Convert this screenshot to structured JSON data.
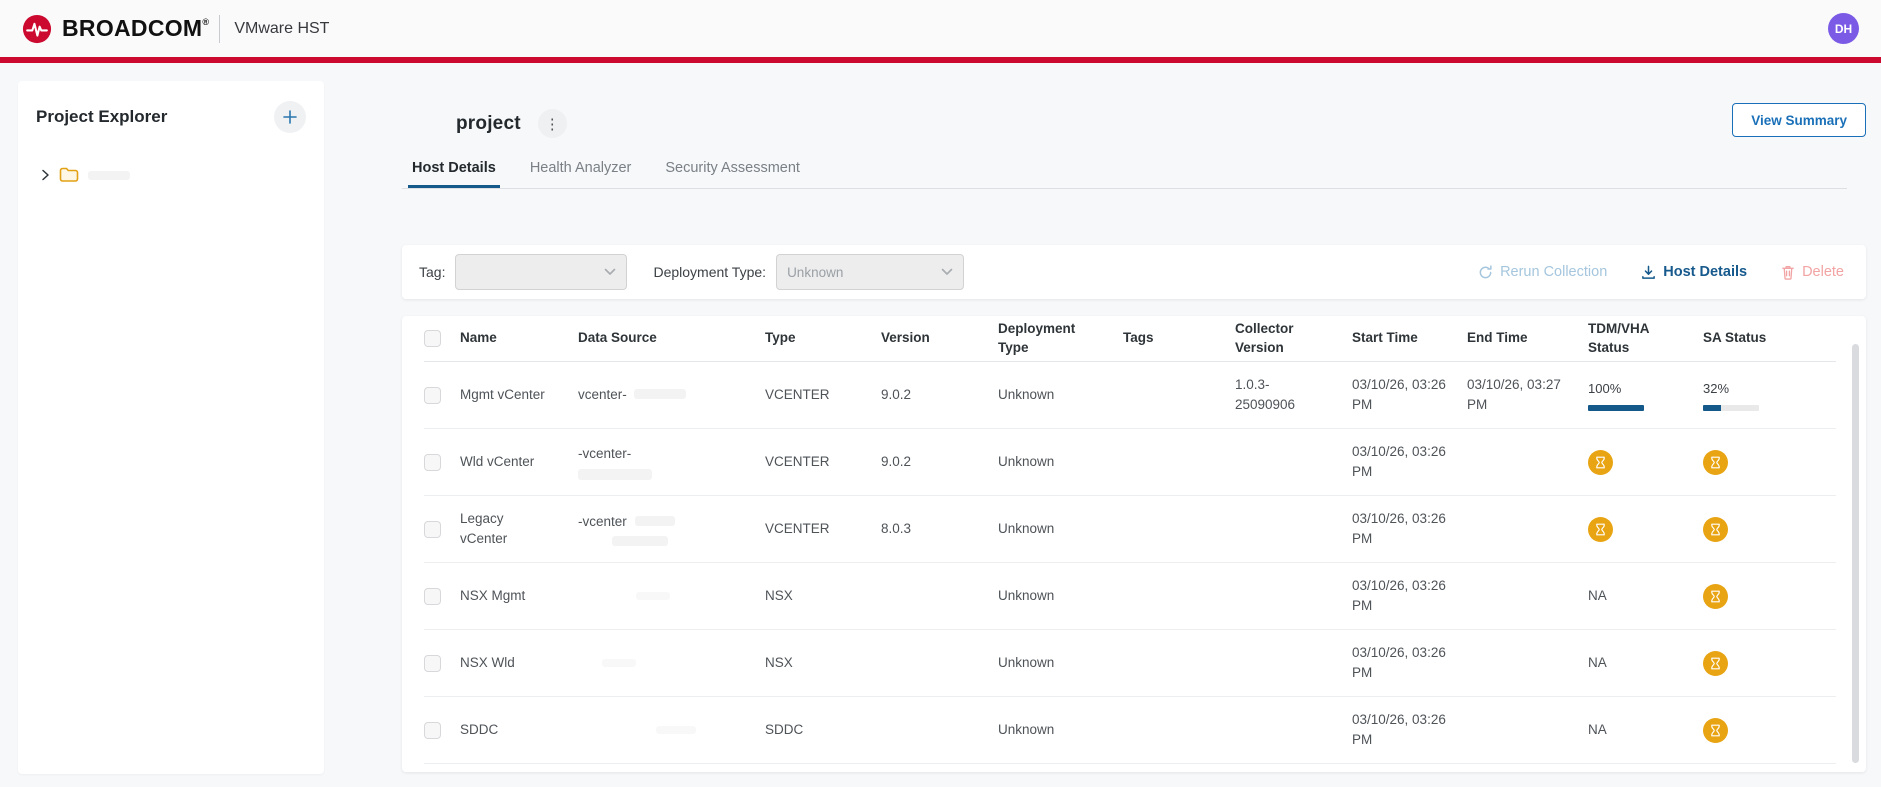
{
  "header": {
    "brand": "BROADCOM",
    "brand_reg": "®",
    "app_title": "VMware HST",
    "avatar_initials": "DH"
  },
  "sidebar": {
    "title": "Project Explorer",
    "add_button": "+"
  },
  "page": {
    "project_title": "project",
    "kebab": "⋮",
    "view_summary_label": "View Summary",
    "tabs": [
      {
        "label": "Host Details",
        "active": true
      },
      {
        "label": "Health Analyzer",
        "active": false
      },
      {
        "label": "Security Assessment",
        "active": false
      }
    ]
  },
  "filters": {
    "tag_label": "Tag:",
    "tag_value": "",
    "deployment_label": "Deployment Type:",
    "deployment_value": "Unknown",
    "actions": {
      "rerun": "Rerun Collection",
      "host_details": "Host Details",
      "delete": "Delete"
    }
  },
  "table": {
    "columns": {
      "name": "Name",
      "data_source": "Data Source",
      "type": "Type",
      "version": "Version",
      "deployment_type": "Deployment Type",
      "tags": "Tags",
      "collector_version": "Collector Version",
      "start_time": "Start Time",
      "end_time": "End Time",
      "tdm_vha_status": "TDM/VHA Status",
      "sa_status": "SA Status"
    },
    "rows": [
      {
        "name": "Mgmt vCenter",
        "data_source": "vcenter-",
        "type": "VCENTER",
        "version": "9.0.2",
        "deployment_type": "Unknown",
        "tags": "",
        "collector_version": "1.0.3-25090906",
        "start_time": "03/10/26, 03:26 PM",
        "end_time": "03/10/26, 03:27 PM",
        "tdm_vha": {
          "kind": "progress",
          "label": "100%",
          "percent": 100
        },
        "sa": {
          "kind": "progress",
          "label": "32%",
          "percent": 32
        }
      },
      {
        "name": "Wld vCenter",
        "data_source": "-vcenter-",
        "type": "VCENTER",
        "version": "9.0.2",
        "deployment_type": "Unknown",
        "tags": "",
        "collector_version": "",
        "start_time": "03/10/26, 03:26 PM",
        "end_time": "",
        "tdm_vha": {
          "kind": "pending"
        },
        "sa": {
          "kind": "pending"
        }
      },
      {
        "name": "Legacy vCenter",
        "data_source": "-vcenter",
        "type": "VCENTER",
        "version": "8.0.3",
        "deployment_type": "Unknown",
        "tags": "",
        "collector_version": "",
        "start_time": "03/10/26, 03:26 PM",
        "end_time": "",
        "tdm_vha": {
          "kind": "pending"
        },
        "sa": {
          "kind": "pending"
        }
      },
      {
        "name": "NSX Mgmt",
        "data_source": "",
        "type": "NSX",
        "version": "",
        "deployment_type": "Unknown",
        "tags": "",
        "collector_version": "",
        "start_time": "03/10/26, 03:26 PM",
        "end_time": "",
        "tdm_vha": {
          "kind": "text",
          "label": "NA"
        },
        "sa": {
          "kind": "pending"
        }
      },
      {
        "name": "NSX Wld",
        "data_source": "",
        "type": "NSX",
        "version": "",
        "deployment_type": "Unknown",
        "tags": "",
        "collector_version": "",
        "start_time": "03/10/26, 03:26 PM",
        "end_time": "",
        "tdm_vha": {
          "kind": "text",
          "label": "NA"
        },
        "sa": {
          "kind": "pending"
        }
      },
      {
        "name": "SDDC",
        "data_source": "",
        "type": "SDDC",
        "version": "",
        "deployment_type": "Unknown",
        "tags": "",
        "collector_version": "",
        "start_time": "03/10/26, 03:26 PM",
        "end_time": "",
        "tdm_vha": {
          "kind": "text",
          "label": "NA"
        },
        "sa": {
          "kind": "pending"
        }
      }
    ]
  },
  "colors": {
    "accent_red": "#CC092F",
    "primary_blue": "#14598A",
    "link_blue": "#1A70B8",
    "pending_orange": "#E8A412",
    "avatar_purple": "#7B5BE6"
  }
}
